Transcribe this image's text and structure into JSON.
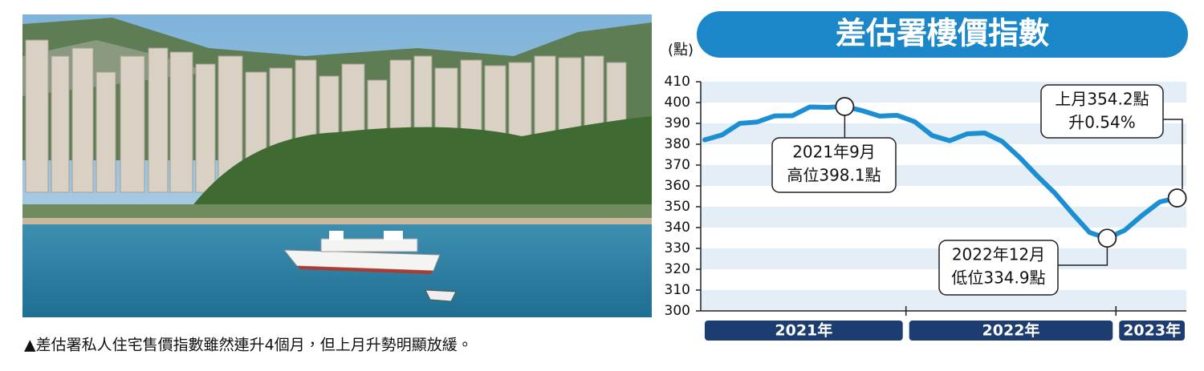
{
  "photo": {
    "caption": "▲差估署私人住宅售價指數雖然連升4個月，但上月升勢明顯放緩。"
  },
  "chart_data": {
    "type": "line",
    "title": "差估署樓價指數",
    "y_label": "(點)",
    "categories": [
      null,
      null,
      null,
      null,
      null,
      null,
      null,
      null,
      null,
      null,
      null,
      null,
      null,
      null,
      null,
      null,
      null,
      null,
      null,
      null,
      null,
      null,
      null,
      null,
      null,
      null,
      null,
      null
    ],
    "x_groups": [
      {
        "label": "2021年",
        "first": 0,
        "last": 11
      },
      {
        "label": "2022年",
        "first": 12,
        "last": 23
      },
      {
        "label": "2023年",
        "first": 24,
        "last": 27
      }
    ],
    "series": [
      {
        "name": "差估署樓價指數",
        "color": "#1b8fd2",
        "values": [
          382.1,
          384.5,
          390.0,
          390.7,
          393.6,
          393.7,
          397.9,
          397.7,
          398.1,
          396.1,
          393.5,
          393.9,
          390.8,
          384.2,
          381.7,
          385.0,
          385.4,
          381.3,
          373.6,
          364.8,
          356.6,
          346.9,
          337.6,
          334.9,
          338.7,
          345.9,
          352.3,
          354.2
        ]
      }
    ],
    "ylim": [
      300,
      410
    ],
    "yticks": [
      300,
      310,
      320,
      330,
      340,
      350,
      360,
      370,
      380,
      390,
      400,
      410
    ],
    "grid": "banded",
    "annotations": [
      {
        "point": 8,
        "lines": [
          "2021年9月",
          "高位398.1點"
        ]
      },
      {
        "point": 23,
        "lines": [
          "2022年12月",
          "低位334.9點"
        ]
      },
      {
        "point": 27,
        "lines": [
          "上月354.2點",
          "升0.54%"
        ]
      }
    ]
  }
}
